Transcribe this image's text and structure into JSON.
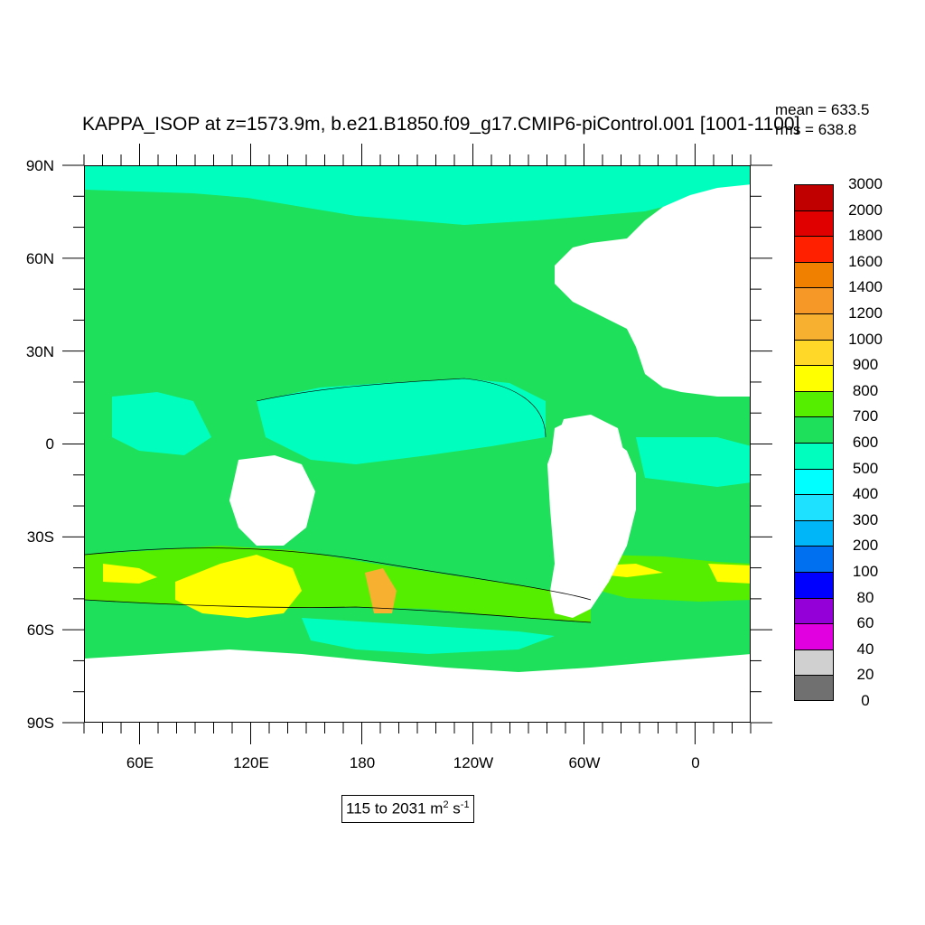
{
  "title": "KAPPA_ISOP at z=1573.9m, b.e21.B1850.f09_g17.CMIP6-piControl.001 [1001-1100]",
  "stats": {
    "mean": "mean = 633.5",
    "rms": "rms = 638.8"
  },
  "lat_labels": [
    "90N",
    "60N",
    "30N",
    "0",
    "30S",
    "60S",
    "90S"
  ],
  "lon_labels": [
    "60E",
    "120E",
    "180",
    "120W",
    "60W",
    "0"
  ],
  "range": {
    "text": "115 to 2031 m",
    "sup1": "2",
    "mid": " s",
    "sup2": "-1"
  },
  "colorbar": {
    "labels": [
      "3000",
      "2000",
      "1800",
      "1600",
      "1400",
      "1200",
      "1000",
      "900",
      "800",
      "700",
      "600",
      "500",
      "400",
      "300",
      "200",
      "100",
      "80",
      "60",
      "40",
      "20",
      "0"
    ],
    "colors": [
      "#c00000",
      "#e00000",
      "#ff2000",
      "#f08000",
      "#f59828",
      "#f8b030",
      "#ffd828",
      "#ffff00",
      "#55ee00",
      "#1ee05a",
      "#00ffbe",
      "#00ffff",
      "#1ee0ff",
      "#00b6f8",
      "#0070f0",
      "#0000ff",
      "#9400d8",
      "#e000e0",
      "#d0d0d0",
      "#707070"
    ]
  },
  "map": {
    "projection": "cylindrical-equidistant",
    "lon_range": [
      30,
      390
    ],
    "lat_range": [
      -90,
      90
    ],
    "land_color": "#ffffff",
    "dominant_fill": "#1ee05a"
  }
}
